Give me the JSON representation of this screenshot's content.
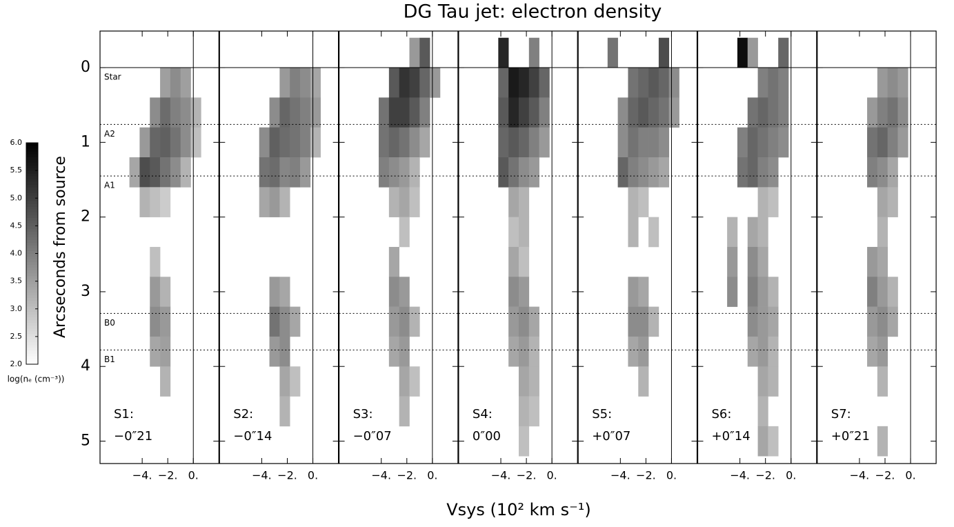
{
  "chart_data": {
    "type": "heatmap",
    "title": "DG Tau jet: electron density",
    "x_label": "Vsys (10² km s⁻¹)",
    "y_label": "Arcseconds from source",
    "colorbar_label": "log(nₑ (cm⁻³))",
    "xlim": [
      -7.3,
      2.0
    ],
    "ylim": [
      -0.49,
      5.3
    ],
    "xticks": [
      {
        "value": -4,
        "label": "−4."
      },
      {
        "value": -2,
        "label": "−2."
      },
      {
        "value": 0,
        "label": "0."
      }
    ],
    "yticks": [
      0,
      1,
      2,
      3,
      4,
      5
    ],
    "clim": [
      2.0,
      6.0
    ],
    "cticks": [
      {
        "value": 2.0,
        "label": "2.0"
      },
      2.5,
      {
        "value": 3.0,
        "label": "3.0"
      },
      3.5,
      {
        "value": 4.0,
        "label": "4.0"
      },
      4.5,
      {
        "value": 5.0,
        "label": "5.0"
      },
      5.5,
      {
        "value": 6.0,
        "label": "6.0"
      }
    ],
    "x_reference": 0,
    "reference_lines": [
      {
        "value": 0,
        "label": "Star",
        "style": "solid"
      },
      {
        "value": 0.76,
        "label": "A2",
        "style": "dotted"
      },
      {
        "value": 1.45,
        "label": "A1",
        "style": "dotted"
      },
      {
        "value": 3.29,
        "label": "B0",
        "style": "dotted"
      },
      {
        "value": 3.78,
        "label": "B1",
        "style": "dotted"
      }
    ],
    "x_edges": [
      -5.0,
      -4.2,
      -3.4,
      -2.6,
      -1.8,
      -1.0,
      -0.2,
      0.6,
      1.4
    ],
    "y_edges": [
      -0.4,
      0.0,
      0.4,
      0.8,
      1.2,
      1.6,
      2.0,
      2.4,
      2.8,
      3.2,
      3.6,
      4.0,
      4.4,
      4.8,
      5.2
    ],
    "panels": [
      {
        "name": "S1:",
        "offset": "−0″21",
        "z": [
          [
            null,
            null,
            null,
            null,
            null,
            null,
            null,
            null
          ],
          [
            null,
            null,
            null,
            3.5,
            3.8,
            3.5,
            null,
            null
          ],
          [
            null,
            null,
            3.8,
            4.3,
            4.0,
            3.8,
            3.2,
            null
          ],
          [
            null,
            3.6,
            4.4,
            4.5,
            4.2,
            3.8,
            3.0,
            null
          ],
          [
            3.4,
            4.8,
            4.6,
            4.2,
            3.8,
            3.2,
            null,
            null
          ],
          [
            null,
            3.2,
            3.0,
            2.8,
            null,
            null,
            null,
            null
          ],
          [
            null,
            null,
            null,
            null,
            null,
            null,
            null,
            null
          ],
          [
            null,
            null,
            3.0,
            null,
            null,
            null,
            null,
            null
          ],
          [
            null,
            null,
            3.6,
            3.2,
            null,
            null,
            null,
            null
          ],
          [
            null,
            null,
            3.8,
            3.6,
            null,
            null,
            null,
            null
          ],
          [
            null,
            null,
            3.4,
            3.5,
            null,
            null,
            null,
            null
          ],
          [
            null,
            null,
            null,
            3.2,
            null,
            null,
            null,
            null
          ],
          [
            null,
            null,
            null,
            null,
            null,
            null,
            null,
            null
          ],
          [
            null,
            null,
            null,
            null,
            null,
            null,
            null,
            null
          ]
        ]
      },
      {
        "name": "S2:",
        "offset": "−0″14",
        "z": [
          [
            null,
            null,
            null,
            null,
            null,
            null,
            null,
            null
          ],
          [
            null,
            null,
            null,
            3.6,
            4.0,
            3.8,
            3.4,
            null
          ],
          [
            null,
            null,
            3.8,
            4.4,
            4.2,
            4.0,
            3.6,
            null
          ],
          [
            null,
            3.8,
            4.5,
            4.3,
            4.2,
            4.0,
            3.2,
            null
          ],
          [
            null,
            4.2,
            4.3,
            3.9,
            4.0,
            3.6,
            null,
            null
          ],
          [
            null,
            3.4,
            3.6,
            3.2,
            null,
            null,
            null,
            null
          ],
          [
            null,
            null,
            null,
            null,
            null,
            null,
            null,
            null
          ],
          [
            null,
            null,
            null,
            null,
            null,
            null,
            null,
            null
          ],
          [
            null,
            null,
            3.6,
            3.4,
            null,
            null,
            null,
            null
          ],
          [
            null,
            null,
            4.2,
            3.8,
            3.4,
            null,
            null,
            null
          ],
          [
            null,
            null,
            3.6,
            3.8,
            null,
            null,
            null,
            null
          ],
          [
            null,
            null,
            null,
            3.4,
            3.0,
            null,
            null,
            null
          ],
          [
            null,
            null,
            null,
            3.2,
            null,
            null,
            null,
            null
          ],
          [
            null,
            null,
            null,
            null,
            null,
            null,
            null,
            null
          ]
        ]
      },
      {
        "name": "S3:",
        "offset": "−0″07",
        "z": [
          [
            null,
            null,
            null,
            null,
            3.6,
            4.6,
            null,
            null
          ],
          [
            null,
            null,
            4.6,
            5.2,
            5.0,
            4.4,
            3.6,
            null
          ],
          [
            null,
            4.2,
            5.0,
            5.0,
            4.6,
            4.0,
            null,
            null
          ],
          [
            null,
            4.2,
            4.4,
            4.2,
            3.8,
            3.4,
            null,
            null
          ],
          [
            null,
            4.0,
            3.8,
            3.6,
            3.2,
            null,
            null,
            null
          ],
          [
            null,
            null,
            3.2,
            3.4,
            3.0,
            null,
            null,
            null
          ],
          [
            null,
            null,
            null,
            3.0,
            null,
            null,
            null,
            null
          ],
          [
            null,
            null,
            3.4,
            null,
            null,
            null,
            null,
            null
          ],
          [
            null,
            null,
            3.8,
            3.6,
            null,
            null,
            null,
            null
          ],
          [
            null,
            null,
            3.6,
            3.8,
            3.2,
            null,
            null,
            null
          ],
          [
            null,
            null,
            3.4,
            3.6,
            null,
            null,
            null,
            null
          ],
          [
            null,
            null,
            null,
            3.4,
            3.0,
            null,
            null,
            null
          ],
          [
            null,
            null,
            null,
            3.2,
            null,
            null,
            null,
            null
          ],
          [
            null,
            null,
            null,
            null,
            null,
            null,
            null,
            null
          ]
        ]
      },
      {
        "name": "S4:",
        "offset": "0″00",
        "z": [
          [
            null,
            5.4,
            null,
            null,
            4.0,
            null,
            null,
            null
          ],
          [
            null,
            4.4,
            5.6,
            5.4,
            5.0,
            4.4,
            null,
            null
          ],
          [
            null,
            4.6,
            5.4,
            5.0,
            4.6,
            4.0,
            null,
            null
          ],
          [
            null,
            4.4,
            4.6,
            4.4,
            4.0,
            3.6,
            null,
            null
          ],
          [
            null,
            4.6,
            4.2,
            3.8,
            3.6,
            null,
            null,
            null
          ],
          [
            null,
            null,
            3.4,
            3.2,
            null,
            null,
            null,
            null
          ],
          [
            null,
            null,
            3.0,
            3.2,
            null,
            null,
            null,
            null
          ],
          [
            null,
            null,
            3.4,
            3.0,
            null,
            null,
            null,
            null
          ],
          [
            null,
            null,
            3.8,
            3.6,
            null,
            null,
            null,
            null
          ],
          [
            null,
            null,
            3.6,
            3.8,
            3.4,
            null,
            null,
            null
          ],
          [
            null,
            null,
            3.4,
            3.6,
            3.2,
            null,
            null,
            null
          ],
          [
            null,
            null,
            null,
            3.4,
            3.2,
            null,
            null,
            null
          ],
          [
            null,
            null,
            null,
            3.2,
            3.0,
            null,
            null,
            null
          ],
          [
            null,
            null,
            null,
            3.0,
            null,
            null,
            null,
            null
          ]
        ]
      },
      {
        "name": "S5:",
        "offset": "+0″07",
        "z": [
          [
            4.2,
            null,
            null,
            null,
            null,
            4.8,
            null,
            null
          ],
          [
            null,
            null,
            4.2,
            4.4,
            4.6,
            4.4,
            3.8,
            null
          ],
          [
            null,
            3.8,
            4.4,
            4.6,
            4.4,
            4.2,
            3.6,
            null
          ],
          [
            null,
            3.8,
            4.2,
            4.0,
            4.0,
            3.8,
            null,
            null
          ],
          [
            null,
            4.4,
            4.0,
            3.8,
            3.6,
            3.4,
            null,
            null
          ],
          [
            null,
            null,
            3.2,
            3.0,
            null,
            null,
            null,
            null
          ],
          [
            null,
            null,
            3.2,
            null,
            3.0,
            null,
            null,
            null
          ],
          [
            null,
            null,
            null,
            null,
            null,
            null,
            null,
            null
          ],
          [
            null,
            null,
            3.6,
            3.4,
            null,
            null,
            null,
            null
          ],
          [
            null,
            null,
            3.8,
            3.8,
            3.2,
            null,
            null,
            null
          ],
          [
            null,
            null,
            3.4,
            3.6,
            null,
            null,
            null,
            null
          ],
          [
            null,
            null,
            null,
            3.2,
            null,
            null,
            null,
            null
          ],
          [
            null,
            null,
            null,
            null,
            null,
            null,
            null,
            null
          ],
          [
            null,
            null,
            null,
            null,
            null,
            null,
            null,
            null
          ]
        ]
      },
      {
        "name": "S6:",
        "offset": "+0″14",
        "z": [
          [
            null,
            5.8,
            3.6,
            null,
            null,
            4.4,
            null,
            null
          ],
          [
            null,
            null,
            null,
            4.0,
            4.2,
            4.0,
            null,
            null
          ],
          [
            null,
            null,
            4.2,
            4.4,
            4.2,
            4.0,
            null,
            null
          ],
          [
            null,
            4.0,
            4.4,
            4.2,
            4.0,
            3.8,
            null,
            null
          ],
          [
            null,
            4.2,
            4.4,
            4.0,
            3.8,
            null,
            null,
            null
          ],
          [
            null,
            null,
            null,
            3.2,
            3.0,
            null,
            null,
            null
          ],
          [
            3.2,
            null,
            3.4,
            3.2,
            null,
            null,
            null,
            null
          ],
          [
            3.6,
            null,
            3.8,
            3.4,
            null,
            null,
            null,
            null
          ],
          [
            3.8,
            null,
            4.0,
            3.6,
            3.2,
            null,
            null,
            null
          ],
          [
            null,
            null,
            3.8,
            3.6,
            3.4,
            null,
            null,
            null
          ],
          [
            null,
            null,
            3.4,
            3.6,
            3.2,
            null,
            null,
            null
          ],
          [
            null,
            null,
            null,
            3.4,
            3.2,
            null,
            null,
            null
          ],
          [
            null,
            null,
            null,
            3.2,
            null,
            null,
            null,
            null
          ],
          [
            null,
            null,
            null,
            3.4,
            3.0,
            null,
            null,
            null
          ]
        ]
      },
      {
        "name": "S7:",
        "offset": "+0″21",
        "z": [
          [
            null,
            null,
            null,
            null,
            null,
            null,
            null,
            null
          ],
          [
            null,
            null,
            null,
            3.6,
            3.8,
            3.6,
            null,
            null
          ],
          [
            null,
            null,
            3.6,
            4.0,
            4.2,
            3.8,
            null,
            null
          ],
          [
            null,
            null,
            4.2,
            4.4,
            4.0,
            3.6,
            null,
            null
          ],
          [
            null,
            null,
            4.0,
            3.8,
            3.4,
            null,
            null,
            null
          ],
          [
            null,
            null,
            null,
            3.4,
            3.2,
            null,
            null,
            null
          ],
          [
            null,
            null,
            null,
            3.2,
            null,
            null,
            null,
            null
          ],
          [
            null,
            null,
            3.6,
            3.4,
            null,
            null,
            null,
            null
          ],
          [
            null,
            null,
            4.0,
            3.6,
            3.2,
            null,
            null,
            null
          ],
          [
            null,
            null,
            3.6,
            3.8,
            3.4,
            null,
            null,
            null
          ],
          [
            null,
            null,
            3.4,
            3.6,
            null,
            null,
            null,
            null
          ],
          [
            null,
            null,
            null,
            3.2,
            null,
            null,
            null,
            null
          ],
          [
            null,
            null,
            null,
            null,
            null,
            null,
            null,
            null
          ],
          [
            null,
            null,
            null,
            3.2,
            null,
            null,
            null,
            null
          ]
        ]
      }
    ]
  }
}
